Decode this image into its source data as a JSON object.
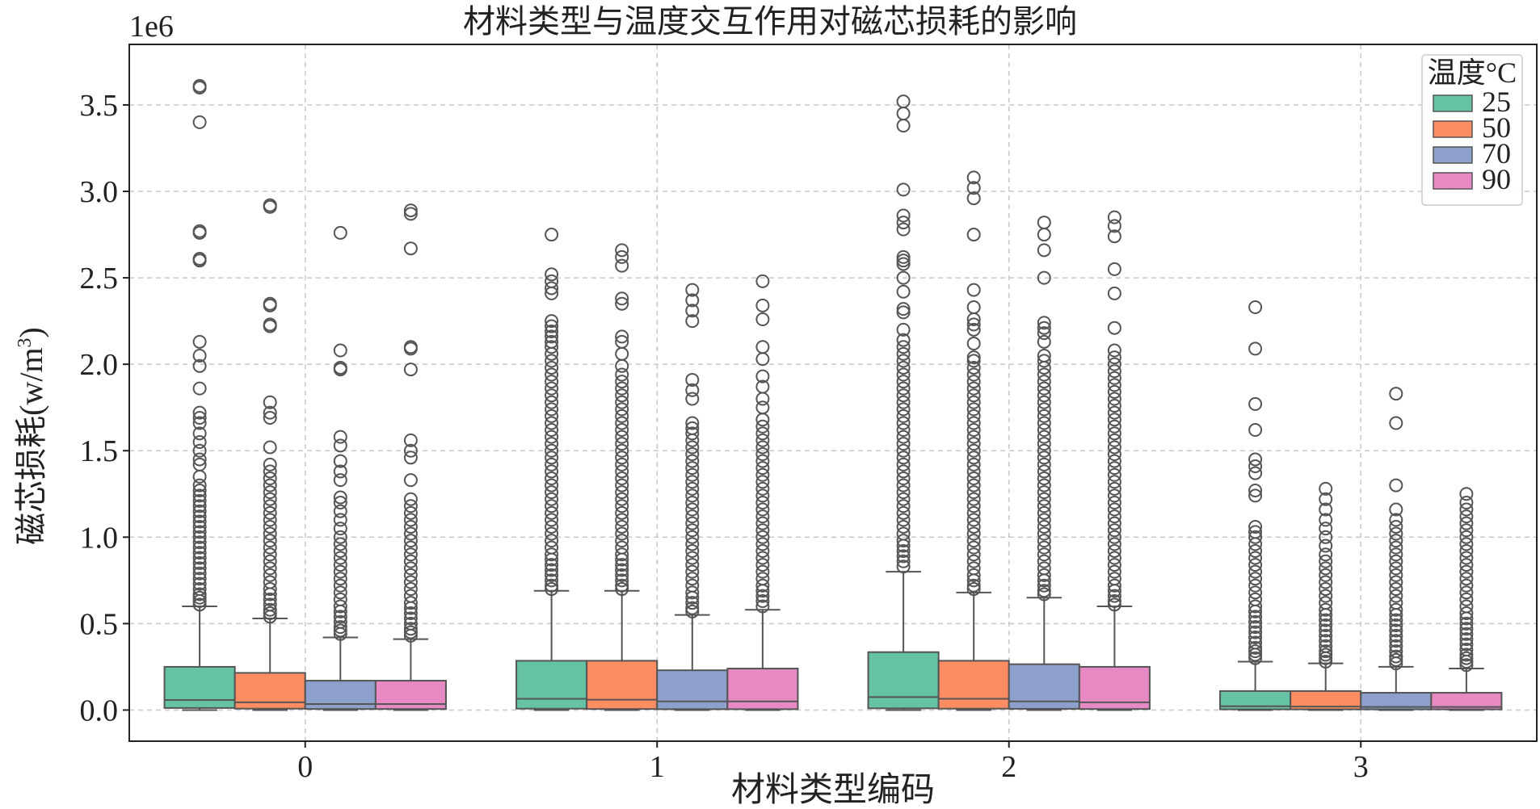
{
  "chart_data": {
    "type": "box",
    "title": "材料类型与温度交互作用对磁芯损耗的影响",
    "xlabel": "材料类型编码",
    "ylabel_main": "磁芯损耗(w/m",
    "ylabel_sup": "3",
    "ylabel_close": ")",
    "offset_label": "1e6",
    "scale": 1000000,
    "ylim": [
      -0.18,
      3.85
    ],
    "yticks": [
      0.0,
      0.5,
      1.0,
      1.5,
      2.0,
      2.5,
      3.0,
      3.5
    ],
    "ytick_labels": [
      "0.0",
      "0.5",
      "1.0",
      "1.5",
      "2.0",
      "2.5",
      "3.0",
      "3.5"
    ],
    "categories": [
      "0",
      "1",
      "2",
      "3"
    ],
    "grid": true,
    "legend": {
      "title": "温度°C",
      "placement": "top-right"
    },
    "series": [
      {
        "name": "25",
        "color": "#66c2a5",
        "boxes": [
          {
            "q1": 0.012,
            "median": 0.058,
            "q3": 0.25,
            "whisker_low": 0.0,
            "whisker_high": 0.6,
            "fliers": [
              3.61,
              3.6,
              3.4,
              2.77,
              2.76,
              2.61,
              2.6,
              2.13,
              2.05,
              1.99,
              1.86,
              1.72,
              1.69,
              1.66,
              1.6,
              1.55,
              1.5,
              1.45,
              1.42,
              1.35,
              1.3,
              1.27,
              1.24,
              1.21,
              1.18,
              1.15,
              1.12,
              1.09,
              1.06,
              1.03,
              1.0,
              0.97,
              0.94,
              0.91,
              0.88,
              0.85,
              0.82,
              0.79,
              0.76,
              0.73,
              0.7,
              0.67,
              0.65,
              0.63,
              0.61
            ]
          },
          {
            "q1": 0.008,
            "median": 0.065,
            "q3": 0.285,
            "whisker_low": 0.0,
            "whisker_high": 0.69,
            "fliers": [
              2.75,
              2.52,
              2.48,
              2.44,
              2.41,
              2.25,
              2.22,
              2.19,
              2.16,
              2.13,
              2.1,
              2.06,
              2.02,
              1.98,
              1.94,
              1.9,
              1.86,
              1.82,
              1.78,
              1.74,
              1.7,
              1.66,
              1.62,
              1.58,
              1.54,
              1.5,
              1.46,
              1.42,
              1.38,
              1.34,
              1.3,
              1.26,
              1.22,
              1.18,
              1.14,
              1.1,
              1.06,
              1.02,
              0.98,
              0.94,
              0.9,
              0.87,
              0.84,
              0.81,
              0.78,
              0.75,
              0.72,
              0.7
            ]
          },
          {
            "q1": 0.01,
            "median": 0.075,
            "q3": 0.335,
            "whisker_low": 0.0,
            "whisker_high": 0.8,
            "fliers": [
              3.52,
              3.45,
              3.38,
              3.01,
              2.86,
              2.82,
              2.78,
              2.62,
              2.6,
              2.58,
              2.5,
              2.42,
              2.32,
              2.3,
              2.2,
              2.14,
              2.1,
              2.06,
              2.02,
              1.98,
              1.94,
              1.9,
              1.86,
              1.82,
              1.78,
              1.74,
              1.7,
              1.66,
              1.62,
              1.58,
              1.54,
              1.5,
              1.46,
              1.42,
              1.38,
              1.34,
              1.3,
              1.26,
              1.22,
              1.18,
              1.14,
              1.1,
              1.06,
              1.02,
              0.98,
              0.95,
              0.92,
              0.89,
              0.86,
              0.83
            ]
          },
          {
            "q1": 0.004,
            "median": 0.022,
            "q3": 0.11,
            "whisker_low": 0.0,
            "whisker_high": 0.28,
            "fliers": [
              2.33,
              2.09,
              1.77,
              1.62,
              1.45,
              1.41,
              1.37,
              1.27,
              1.24,
              1.06,
              1.03,
              1.0,
              0.96,
              0.92,
              0.88,
              0.84,
              0.8,
              0.76,
              0.72,
              0.68,
              0.64,
              0.6,
              0.57,
              0.54,
              0.51,
              0.48,
              0.45,
              0.42,
              0.39,
              0.36,
              0.34,
              0.32,
              0.3
            ]
          }
        ]
      },
      {
        "name": "50",
        "color": "#fc8d62",
        "boxes": [
          {
            "q1": 0.008,
            "median": 0.045,
            "q3": 0.215,
            "whisker_low": 0.0,
            "whisker_high": 0.53,
            "fliers": [
              2.92,
              2.91,
              2.35,
              2.34,
              2.23,
              2.22,
              1.78,
              1.72,
              1.69,
              1.52,
              1.42,
              1.38,
              1.34,
              1.3,
              1.26,
              1.22,
              1.18,
              1.14,
              1.1,
              1.06,
              1.02,
              0.98,
              0.94,
              0.9,
              0.86,
              0.82,
              0.78,
              0.74,
              0.7,
              0.67,
              0.64,
              0.61,
              0.58,
              0.56,
              0.54
            ]
          },
          {
            "q1": 0.006,
            "median": 0.06,
            "q3": 0.285,
            "whisker_low": 0.0,
            "whisker_high": 0.69,
            "fliers": [
              2.66,
              2.62,
              2.57,
              2.38,
              2.35,
              2.16,
              2.13,
              2.06,
              1.99,
              1.94,
              1.9,
              1.86,
              1.82,
              1.78,
              1.74,
              1.7,
              1.66,
              1.62,
              1.58,
              1.54,
              1.5,
              1.46,
              1.42,
              1.38,
              1.34,
              1.3,
              1.26,
              1.22,
              1.18,
              1.14,
              1.1,
              1.06,
              1.02,
              0.98,
              0.94,
              0.9,
              0.87,
              0.84,
              0.81,
              0.78,
              0.75,
              0.72,
              0.7
            ]
          },
          {
            "q1": 0.008,
            "median": 0.065,
            "q3": 0.285,
            "whisker_low": 0.0,
            "whisker_high": 0.68,
            "fliers": [
              3.08,
              3.02,
              2.96,
              2.75,
              2.43,
              2.33,
              2.26,
              2.23,
              2.2,
              2.12,
              2.04,
              2.02,
              1.98,
              1.94,
              1.9,
              1.86,
              1.82,
              1.78,
              1.74,
              1.7,
              1.66,
              1.62,
              1.58,
              1.54,
              1.5,
              1.46,
              1.42,
              1.38,
              1.34,
              1.3,
              1.26,
              1.22,
              1.18,
              1.14,
              1.1,
              1.06,
              1.02,
              0.98,
              0.94,
              0.9,
              0.86,
              0.82,
              0.78,
              0.75,
              0.72,
              0.7
            ]
          },
          {
            "q1": 0.004,
            "median": 0.02,
            "q3": 0.11,
            "whisker_low": 0.0,
            "whisker_high": 0.27,
            "fliers": [
              1.28,
              1.22,
              1.16,
              1.1,
              1.05,
              1.0,
              0.95,
              0.9,
              0.86,
              0.82,
              0.78,
              0.74,
              0.7,
              0.66,
              0.62,
              0.58,
              0.55,
              0.52,
              0.49,
              0.46,
              0.43,
              0.4,
              0.37,
              0.34,
              0.32,
              0.3,
              0.28
            ]
          }
        ]
      },
      {
        "name": "70",
        "color": "#8da0cb",
        "boxes": [
          {
            "q1": 0.006,
            "median": 0.035,
            "q3": 0.17,
            "whisker_low": 0.0,
            "whisker_high": 0.42,
            "fliers": [
              2.76,
              2.08,
              1.98,
              1.97,
              1.58,
              1.53,
              1.44,
              1.38,
              1.33,
              1.23,
              1.2,
              1.15,
              1.1,
              1.05,
              1.0,
              0.96,
              0.92,
              0.88,
              0.84,
              0.8,
              0.76,
              0.72,
              0.68,
              0.64,
              0.6,
              0.57,
              0.54,
              0.51,
              0.48,
              0.46,
              0.44
            ]
          },
          {
            "q1": 0.005,
            "median": 0.05,
            "q3": 0.23,
            "whisker_low": 0.0,
            "whisker_high": 0.55,
            "fliers": [
              2.43,
              2.37,
              2.31,
              2.25,
              1.91,
              1.85,
              1.8,
              1.66,
              1.63,
              1.6,
              1.56,
              1.52,
              1.48,
              1.44,
              1.4,
              1.36,
              1.32,
              1.28,
              1.24,
              1.2,
              1.16,
              1.12,
              1.08,
              1.04,
              1.0,
              0.96,
              0.92,
              0.88,
              0.84,
              0.8,
              0.76,
              0.72,
              0.68,
              0.65,
              0.62,
              0.59,
              0.57
            ]
          },
          {
            "q1": 0.007,
            "median": 0.05,
            "q3": 0.265,
            "whisker_low": 0.0,
            "whisker_high": 0.65,
            "fliers": [
              2.82,
              2.75,
              2.66,
              2.5,
              2.24,
              2.21,
              2.18,
              2.13,
              2.05,
              2.02,
              1.98,
              1.94,
              1.9,
              1.86,
              1.82,
              1.78,
              1.74,
              1.7,
              1.66,
              1.62,
              1.58,
              1.54,
              1.5,
              1.46,
              1.42,
              1.38,
              1.34,
              1.3,
              1.26,
              1.22,
              1.18,
              1.14,
              1.1,
              1.06,
              1.02,
              0.98,
              0.94,
              0.9,
              0.86,
              0.82,
              0.78,
              0.75,
              0.72,
              0.69,
              0.67
            ]
          },
          {
            "q1": 0.004,
            "median": 0.018,
            "q3": 0.1,
            "whisker_low": 0.0,
            "whisker_high": 0.25,
            "fliers": [
              1.83,
              1.66,
              1.3,
              1.16,
              1.1,
              1.06,
              1.02,
              0.98,
              0.94,
              0.9,
              0.86,
              0.82,
              0.78,
              0.74,
              0.7,
              0.66,
              0.62,
              0.58,
              0.55,
              0.52,
              0.49,
              0.46,
              0.43,
              0.4,
              0.37,
              0.34,
              0.31,
              0.29,
              0.27
            ]
          }
        ]
      },
      {
        "name": "90",
        "color": "#e78ac3",
        "boxes": [
          {
            "q1": 0.006,
            "median": 0.035,
            "q3": 0.17,
            "whisker_low": 0.0,
            "whisker_high": 0.41,
            "fliers": [
              2.89,
              2.87,
              2.67,
              2.1,
              2.09,
              1.97,
              1.56,
              1.5,
              1.46,
              1.33,
              1.22,
              1.18,
              1.14,
              1.1,
              1.06,
              1.02,
              0.98,
              0.94,
              0.9,
              0.86,
              0.82,
              0.78,
              0.74,
              0.7,
              0.66,
              0.62,
              0.59,
              0.56,
              0.53,
              0.5,
              0.47,
              0.45,
              0.43
            ]
          },
          {
            "q1": 0.005,
            "median": 0.05,
            "q3": 0.24,
            "whisker_low": 0.0,
            "whisker_high": 0.58,
            "fliers": [
              2.48,
              2.34,
              2.26,
              2.1,
              2.03,
              1.93,
              1.87,
              1.8,
              1.75,
              1.68,
              1.64,
              1.6,
              1.56,
              1.52,
              1.48,
              1.44,
              1.4,
              1.36,
              1.32,
              1.28,
              1.24,
              1.2,
              1.16,
              1.12,
              1.08,
              1.04,
              1.0,
              0.96,
              0.92,
              0.88,
              0.84,
              0.8,
              0.76,
              0.72,
              0.69,
              0.66,
              0.63,
              0.6
            ]
          },
          {
            "q1": 0.006,
            "median": 0.045,
            "q3": 0.25,
            "whisker_low": 0.0,
            "whisker_high": 0.6,
            "fliers": [
              2.85,
              2.8,
              2.74,
              2.55,
              2.41,
              2.21,
              2.08,
              2.04,
              2.0,
              1.96,
              1.92,
              1.88,
              1.84,
              1.8,
              1.76,
              1.72,
              1.68,
              1.64,
              1.6,
              1.56,
              1.52,
              1.48,
              1.44,
              1.4,
              1.36,
              1.32,
              1.28,
              1.24,
              1.2,
              1.16,
              1.12,
              1.08,
              1.04,
              1.0,
              0.96,
              0.92,
              0.88,
              0.84,
              0.8,
              0.76,
              0.72,
              0.69,
              0.66,
              0.63,
              0.61
            ]
          },
          {
            "q1": 0.004,
            "median": 0.018,
            "q3": 0.1,
            "whisker_low": 0.0,
            "whisker_high": 0.24,
            "fliers": [
              1.25,
              1.2,
              1.16,
              1.12,
              1.08,
              1.04,
              1.0,
              0.96,
              0.92,
              0.88,
              0.84,
              0.8,
              0.76,
              0.72,
              0.68,
              0.64,
              0.6,
              0.56,
              0.53,
              0.5,
              0.47,
              0.44,
              0.41,
              0.38,
              0.35,
              0.32,
              0.3,
              0.28,
              0.26
            ]
          }
        ]
      }
    ]
  }
}
